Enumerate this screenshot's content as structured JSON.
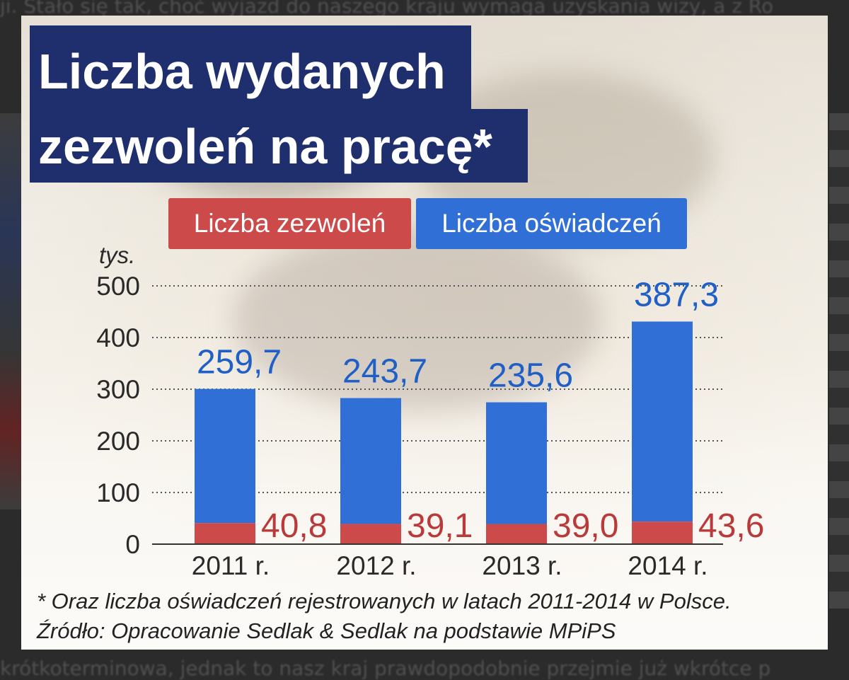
{
  "background": {
    "top_text": "ji. Stało się tak, choć wyjazd do naszego kraju wymaga uzyskania wizy, a z Ro",
    "bottom_text": "krótkoterminowa, jednak to nasz kraj prawdopodobnie przejmie już wkrótce p"
  },
  "colors": {
    "title_bg": "#1f2f6e",
    "permits": "#cc4a4a",
    "declarations": "#2f6fd6"
  },
  "title": {
    "line1": "Liczba wydanych",
    "line2": "zezwoleń na pracę*"
  },
  "legend": {
    "permits": "Liczba zezwoleń",
    "declarations": "Liczba oświadczeń"
  },
  "chart_data": {
    "type": "bar",
    "stacked": true,
    "unit_label": "tys.",
    "categories": [
      "2011 r.",
      "2012 r.",
      "2013 r.",
      "2014 r."
    ],
    "series": [
      {
        "name": "Liczba zezwoleń",
        "color": "#cc4a4a",
        "values": [
          40.8,
          39.1,
          39.0,
          43.6
        ],
        "labels": [
          "40,8",
          "39,1",
          "39,0",
          "43,6"
        ]
      },
      {
        "name": "Liczba oświadczeń",
        "color": "#2f6fd6",
        "values": [
          259.7,
          243.7,
          235.6,
          387.3
        ],
        "labels": [
          "259,7",
          "243,7",
          "235,6",
          "387,3"
        ]
      }
    ],
    "ylim": [
      0,
      500
    ],
    "yticks": [
      0,
      100,
      200,
      300,
      400,
      500
    ],
    "grid": true,
    "legend_position": "top"
  },
  "footnotes": {
    "note": "* Oraz liczba oświadczeń rejestrowanych w latach 2011-2014 w Polsce.",
    "source": "Źródło: Opracowanie Sedlak & Sedlak na podstawie MPiPS"
  }
}
